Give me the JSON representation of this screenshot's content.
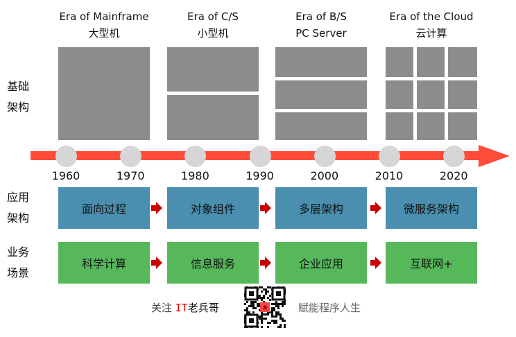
{
  "eras": [
    {
      "title": "Era of Mainframe",
      "subtitle": "大型机"
    },
    {
      "title": "Era of C/S",
      "subtitle": "小型机"
    },
    {
      "title": "Era of B/S",
      "subtitle": "PC Server"
    },
    {
      "title": "Era of the Cloud",
      "subtitle": "云计算"
    }
  ],
  "rows": {
    "infra": [
      "基础",
      "架构"
    ],
    "app": [
      "应用",
      "架构"
    ],
    "biz": [
      "业务",
      "场景"
    ]
  },
  "years": [
    "1960",
    "1970",
    "1980",
    "1990",
    "2000",
    "2010",
    "2020"
  ],
  "app_arch": [
    "面向过程",
    "对象组件",
    "多层架构",
    "微服务架构"
  ],
  "biz_scenarios": [
    "科学计算",
    "信息服务",
    "企业应用",
    "互联网+"
  ],
  "footer": {
    "follow": "关注",
    "brand_it": "IT",
    "brand_rest": "老兵哥",
    "slogan": "赋能程序人生"
  },
  "colors": {
    "timeline": "#ff4b3a",
    "app": "#4a8fb0",
    "biz": "#56b85a",
    "block": "#8c8c8c",
    "arrow": "#cc0000"
  }
}
